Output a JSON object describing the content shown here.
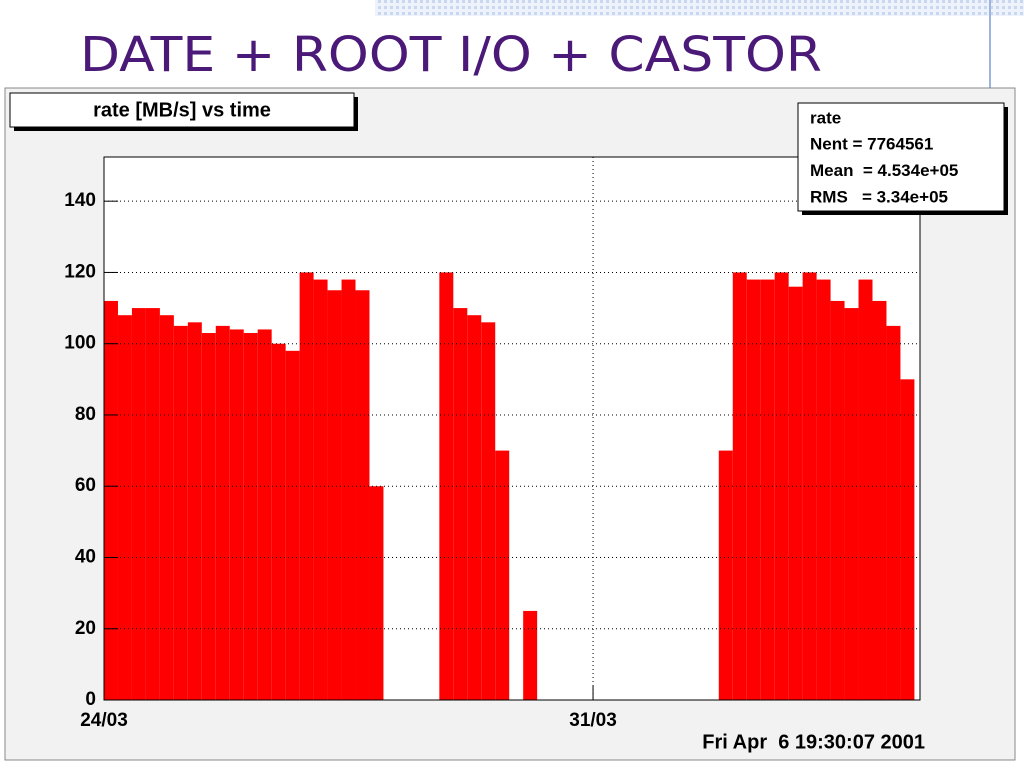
{
  "chart_data": {
    "type": "histogram",
    "slide_title": "DATE + ROOT I/O + CASTOR",
    "title": "rate [MB/s] vs time",
    "timestamp": "Fri Apr  6 19:30:07 2001",
    "stats": {
      "title": "rate",
      "lines": [
        "Nent = 7764561",
        "Mean  = 4.534e+05",
        "RMS   = 3.34e+05"
      ]
    },
    "bins": [
      0,
      0.2,
      0.4,
      0.6,
      0.8,
      1,
      1.2,
      1.4,
      1.6,
      1.8,
      2,
      2.2,
      2.4,
      2.6,
      2.8,
      3,
      3.2,
      3.4,
      3.6,
      3.8,
      4,
      4.2,
      4.4,
      4.6,
      4.8,
      5,
      5.2,
      5.4,
      5.6,
      5.8,
      6,
      6.2,
      6.4,
      6.6,
      6.8,
      7,
      7.2,
      7.4,
      7.6,
      7.8,
      8,
      8.2,
      8.4,
      8.6,
      8.8,
      9,
      9.2,
      9.4,
      9.6,
      9.8,
      10,
      10.2,
      10.4,
      10.6,
      10.8,
      11,
      11.2,
      11.4,
      11.6
    ],
    "values": [
      112,
      108,
      110,
      110,
      108,
      105,
      106,
      103,
      105,
      104,
      103,
      104,
      100,
      98,
      120,
      118,
      115,
      118,
      115,
      60,
      0,
      0,
      0,
      0,
      120,
      110,
      108,
      106,
      70,
      0,
      25,
      0,
      0,
      0,
      0,
      0,
      0,
      0,
      0,
      0,
      0,
      0,
      0,
      0,
      70,
      120,
      118,
      118,
      120,
      116,
      120,
      118,
      112,
      110,
      118,
      112,
      105,
      90,
      0
    ],
    "color": "#ff0000",
    "xlim": [
      0,
      11.68
    ],
    "xticks": [
      {
        "value": 0,
        "label": "24/03"
      },
      {
        "value": 7,
        "label": "31/03"
      }
    ],
    "ylim": [
      0,
      152.4
    ],
    "yticks": [
      0,
      20,
      40,
      60,
      80,
      100,
      120,
      140
    ],
    "grid": true
  }
}
